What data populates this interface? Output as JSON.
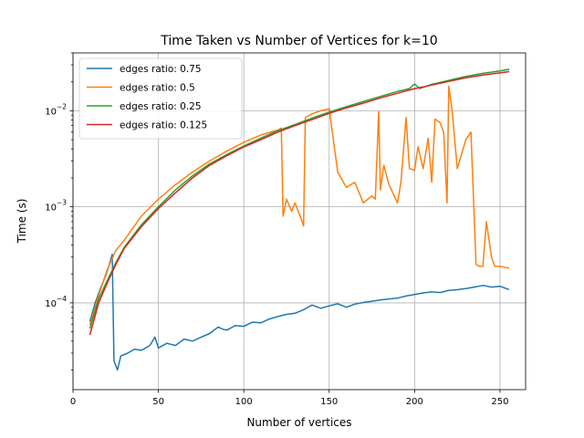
{
  "chart_data": {
    "type": "line",
    "title": "Time Taken vs Number of Vertices for k=10",
    "xlabel": "Number of vertices",
    "ylabel": "Time (s)",
    "xlim": [
      0,
      265
    ],
    "ylim": [
      1.25e-05,
      0.04
    ],
    "yscale": "log",
    "grid": true,
    "legend_position": "top-left",
    "x_ticks": [
      0,
      50,
      100,
      150,
      200,
      250
    ],
    "y_ticks": [
      {
        "value": 0.0001,
        "base": "10",
        "exp": "−4"
      },
      {
        "value": 0.001,
        "base": "10",
        "exp": "−3"
      },
      {
        "value": 0.01,
        "base": "10",
        "exp": "−2"
      }
    ],
    "series": [
      {
        "name": "edges ratio: 0.75",
        "color": "#1f77b4",
        "points": [
          [
            10,
            6.5e-05
          ],
          [
            13,
            0.0001
          ],
          [
            16,
            0.00014
          ],
          [
            19,
            0.00019
          ],
          [
            21,
            0.00024
          ],
          [
            23,
            0.00032
          ],
          [
            24,
            2.5e-05
          ],
          [
            26,
            2e-05
          ],
          [
            28,
            2.8e-05
          ],
          [
            32,
            3e-05
          ],
          [
            36,
            3.3e-05
          ],
          [
            40,
            3.2e-05
          ],
          [
            45,
            3.6e-05
          ],
          [
            48,
            4.4e-05
          ],
          [
            50,
            3.4e-05
          ],
          [
            55,
            3.8e-05
          ],
          [
            60,
            3.6e-05
          ],
          [
            65,
            4.2e-05
          ],
          [
            70,
            4e-05
          ],
          [
            75,
            4.4e-05
          ],
          [
            80,
            4.8e-05
          ],
          [
            85,
            5.6e-05
          ],
          [
            88,
            5.3e-05
          ],
          [
            90,
            5.2e-05
          ],
          [
            95,
            5.8e-05
          ],
          [
            100,
            5.7e-05
          ],
          [
            105,
            6.3e-05
          ],
          [
            110,
            6.2e-05
          ],
          [
            115,
            6.8e-05
          ],
          [
            120,
            7.2e-05
          ],
          [
            125,
            7.6e-05
          ],
          [
            130,
            7.8e-05
          ],
          [
            135,
            8.5e-05
          ],
          [
            140,
            9.5e-05
          ],
          [
            145,
            8.8e-05
          ],
          [
            150,
            9.3e-05
          ],
          [
            155,
            9.8e-05
          ],
          [
            160,
            9e-05
          ],
          [
            165,
            9.7e-05
          ],
          [
            170,
            0.000101
          ],
          [
            175,
            0.000104
          ],
          [
            180,
            0.000107
          ],
          [
            185,
            0.00011
          ],
          [
            190,
            0.000112
          ],
          [
            195,
            0.000118
          ],
          [
            200,
            0.000122
          ],
          [
            205,
            0.000127
          ],
          [
            210,
            0.00013
          ],
          [
            215,
            0.000128
          ],
          [
            220,
            0.000135
          ],
          [
            225,
            0.000137
          ],
          [
            230,
            0.000141
          ],
          [
            235,
            0.000146
          ],
          [
            240,
            0.000152
          ],
          [
            245,
            0.000146
          ],
          [
            250,
            0.000149
          ],
          [
            255,
            0.000138
          ]
        ]
      },
      {
        "name": "edges ratio: 0.5",
        "color": "#ff7f0e",
        "points": [
          [
            10,
            6e-05
          ],
          [
            15,
            0.00012
          ],
          [
            20,
            0.00022
          ],
          [
            25,
            0.00035
          ],
          [
            30,
            0.00045
          ],
          [
            40,
            0.0008
          ],
          [
            50,
            0.0012
          ],
          [
            60,
            0.0017
          ],
          [
            70,
            0.0023
          ],
          [
            80,
            0.003
          ],
          [
            90,
            0.0038
          ],
          [
            100,
            0.0047
          ],
          [
            110,
            0.0056
          ],
          [
            120,
            0.0063
          ],
          [
            122,
            0.0066
          ],
          [
            123,
            0.0008
          ],
          [
            125,
            0.0012
          ],
          [
            128,
            0.0009
          ],
          [
            130,
            0.0011
          ],
          [
            133,
            0.0008
          ],
          [
            135,
            0.00063
          ],
          [
            136,
            0.0085
          ],
          [
            140,
            0.0093
          ],
          [
            145,
            0.01
          ],
          [
            150,
            0.0105
          ],
          [
            155,
            0.0023
          ],
          [
            160,
            0.0016
          ],
          [
            165,
            0.0018
          ],
          [
            170,
            0.0011
          ],
          [
            175,
            0.0013
          ],
          [
            177,
            0.0012
          ],
          [
            179,
            0.0098
          ],
          [
            180,
            0.0015
          ],
          [
            182,
            0.0027
          ],
          [
            185,
            0.0017
          ],
          [
            190,
            0.0011
          ],
          [
            192,
            0.0018
          ],
          [
            195,
            0.0085
          ],
          [
            197,
            0.0025
          ],
          [
            200,
            0.0024
          ],
          [
            202,
            0.0042
          ],
          [
            205,
            0.0025
          ],
          [
            208,
            0.0052
          ],
          [
            210,
            0.0018
          ],
          [
            212,
            0.0082
          ],
          [
            215,
            0.0075
          ],
          [
            217,
            0.006
          ],
          [
            219,
            0.0011
          ],
          [
            220,
            0.018
          ],
          [
            222,
            0.01
          ],
          [
            225,
            0.0025
          ],
          [
            230,
            0.005
          ],
          [
            233,
            0.006
          ],
          [
            236,
            0.00025
          ],
          [
            238,
            0.00024
          ],
          [
            240,
            0.00024
          ],
          [
            242,
            0.0007
          ],
          [
            245,
            0.0003
          ],
          [
            247,
            0.00024
          ],
          [
            250,
            0.00024
          ],
          [
            255,
            0.00023
          ]
        ]
      },
      {
        "name": "edges ratio: 0.25",
        "color": "#2ca02c",
        "points": [
          [
            10,
            5.5e-05
          ],
          [
            15,
            0.00011
          ],
          [
            20,
            0.00017
          ],
          [
            25,
            0.00026
          ],
          [
            30,
            0.00038
          ],
          [
            40,
            0.00065
          ],
          [
            50,
            0.001
          ],
          [
            60,
            0.0015
          ],
          [
            70,
            0.0021
          ],
          [
            80,
            0.0028
          ],
          [
            90,
            0.0035
          ],
          [
            100,
            0.0043
          ],
          [
            110,
            0.0052
          ],
          [
            120,
            0.0062
          ],
          [
            130,
            0.0072
          ],
          [
            140,
            0.0084
          ],
          [
            150,
            0.0097
          ],
          [
            160,
            0.011
          ],
          [
            170,
            0.0125
          ],
          [
            180,
            0.0141
          ],
          [
            190,
            0.0159
          ],
          [
            197,
            0.017
          ],
          [
            200,
            0.019
          ],
          [
            203,
            0.017
          ],
          [
            210,
            0.0188
          ],
          [
            220,
            0.0207
          ],
          [
            230,
            0.0228
          ],
          [
            240,
            0.0245
          ],
          [
            250,
            0.026
          ],
          [
            255,
            0.027
          ]
        ]
      },
      {
        "name": "edges ratio: 0.125",
        "color": "#d62728",
        "points": [
          [
            10,
            4.7e-05
          ],
          [
            15,
            0.0001
          ],
          [
            20,
            0.00016
          ],
          [
            25,
            0.00025
          ],
          [
            30,
            0.00037
          ],
          [
            40,
            0.00062
          ],
          [
            50,
            0.00096
          ],
          [
            60,
            0.0014
          ],
          [
            70,
            0.002
          ],
          [
            80,
            0.0027
          ],
          [
            90,
            0.0034
          ],
          [
            100,
            0.0042
          ],
          [
            110,
            0.005
          ],
          [
            120,
            0.006
          ],
          [
            130,
            0.007
          ],
          [
            140,
            0.0081
          ],
          [
            150,
            0.0094
          ],
          [
            160,
            0.0107
          ],
          [
            170,
            0.012
          ],
          [
            180,
            0.0136
          ],
          [
            190,
            0.0152
          ],
          [
            200,
            0.017
          ],
          [
            210,
            0.0185
          ],
          [
            220,
            0.0202
          ],
          [
            230,
            0.022
          ],
          [
            240,
            0.0235
          ],
          [
            250,
            0.0248
          ],
          [
            255,
            0.0255
          ]
        ]
      }
    ]
  }
}
